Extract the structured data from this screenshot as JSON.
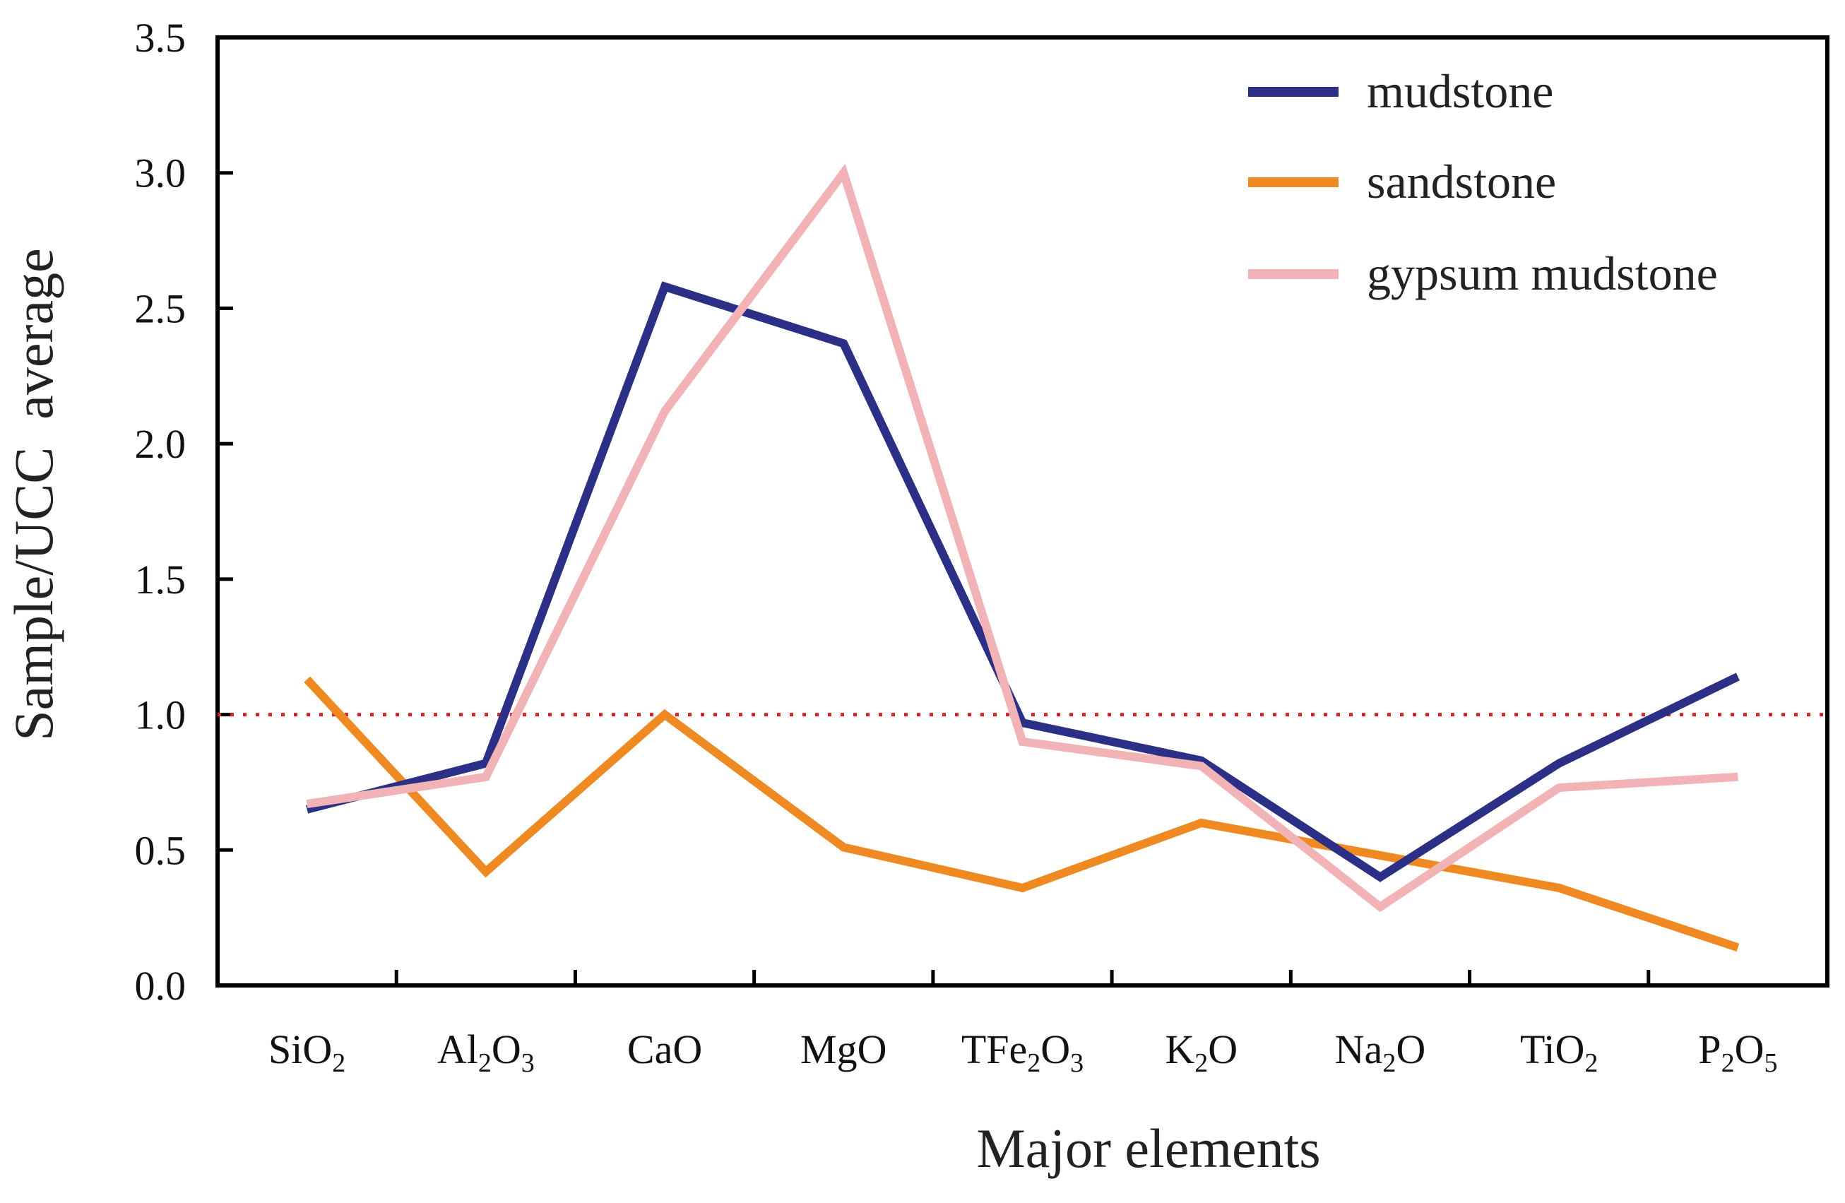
{
  "chart_data": {
    "type": "line",
    "title": "",
    "xlabel": "Major elements",
    "ylabel": "Sample/UCC  average",
    "ylim": [
      0,
      3.5
    ],
    "yticks": [
      "0.0",
      "0.5",
      "1.0",
      "1.5",
      "2.0",
      "2.5",
      "3.0",
      "3.5"
    ],
    "ytick_values": [
      0,
      0.5,
      1.0,
      1.5,
      2.0,
      2.5,
      3.0,
      3.5
    ],
    "categories": [
      "SiO2",
      "Al2O3",
      "CaO",
      "MgO",
      "TFe2O3",
      "K2O",
      "Na2O",
      "TiO2",
      "P2O5"
    ],
    "category_labels": [
      [
        {
          "t": "SiO",
          "s": false
        },
        {
          "t": "2",
          "s": true
        }
      ],
      [
        {
          "t": "Al",
          "s": false
        },
        {
          "t": "2",
          "s": true
        },
        {
          "t": "O",
          "s": false
        },
        {
          "t": "3",
          "s": true
        }
      ],
      [
        {
          "t": "CaO",
          "s": false
        }
      ],
      [
        {
          "t": "MgO",
          "s": false
        }
      ],
      [
        {
          "t": "TFe",
          "s": false
        },
        {
          "t": "2",
          "s": true
        },
        {
          "t": "O",
          "s": false
        },
        {
          "t": "3",
          "s": true
        }
      ],
      [
        {
          "t": "K",
          "s": false
        },
        {
          "t": "2",
          "s": true
        },
        {
          "t": "O",
          "s": false
        }
      ],
      [
        {
          "t": "Na",
          "s": false
        },
        {
          "t": "2",
          "s": true
        },
        {
          "t": "O",
          "s": false
        }
      ],
      [
        {
          "t": "TiO",
          "s": false
        },
        {
          "t": "2",
          "s": true
        }
      ],
      [
        {
          "t": "P",
          "s": false
        },
        {
          "t": "2",
          "s": true
        },
        {
          "t": "O",
          "s": false
        },
        {
          "t": "5",
          "s": true
        }
      ]
    ],
    "series": [
      {
        "name": "mudstone",
        "color": "#2c2f86",
        "values": [
          0.65,
          0.82,
          2.58,
          2.37,
          0.97,
          0.83,
          0.4,
          0.82,
          1.14
        ]
      },
      {
        "name": "sandstone",
        "color": "#ef8a23",
        "values": [
          1.13,
          0.42,
          1.0,
          0.51,
          0.36,
          0.6,
          0.48,
          0.36,
          0.14
        ]
      },
      {
        "name": "gypsum mudstone",
        "color": "#f2b3b6",
        "values": [
          0.67,
          0.77,
          2.12,
          3.0,
          0.9,
          0.81,
          0.29,
          0.73,
          0.77
        ]
      }
    ],
    "reference_line": {
      "value": 1.0,
      "color": "#d9232a",
      "style": "dotted"
    },
    "legend": "top-right",
    "grid": false
  }
}
